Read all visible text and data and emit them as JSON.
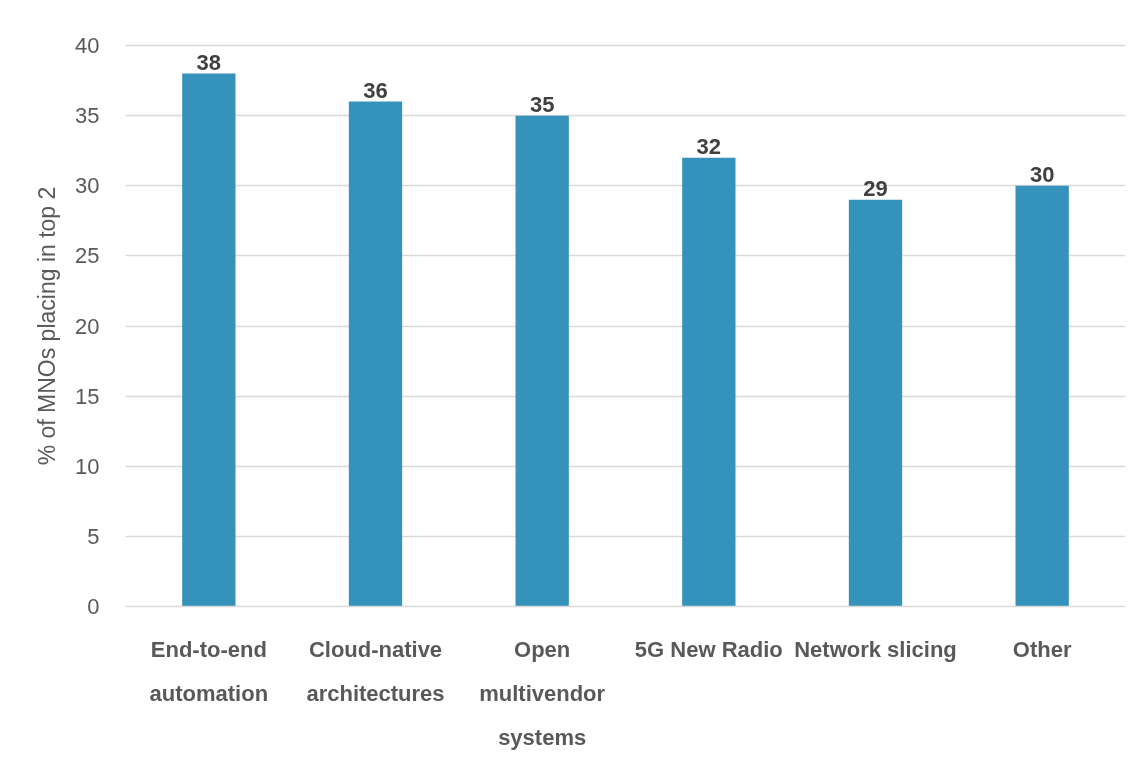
{
  "chart_data": {
    "type": "bar",
    "ylabel": "% of MNOs placing in top 2",
    "categories": [
      "End-to-end automation",
      "Cloud-native architectures",
      "Open multivendor systems",
      "5G New Radio",
      "Network slicing",
      "Other"
    ],
    "values": [
      38,
      36,
      35,
      32,
      29,
      30
    ],
    "color": "#3593bb",
    "ylim": [
      0,
      40
    ],
    "yticks": [
      0,
      5,
      10,
      15,
      20,
      25,
      30,
      35,
      40
    ],
    "grid": "y",
    "data_labels": true
  }
}
